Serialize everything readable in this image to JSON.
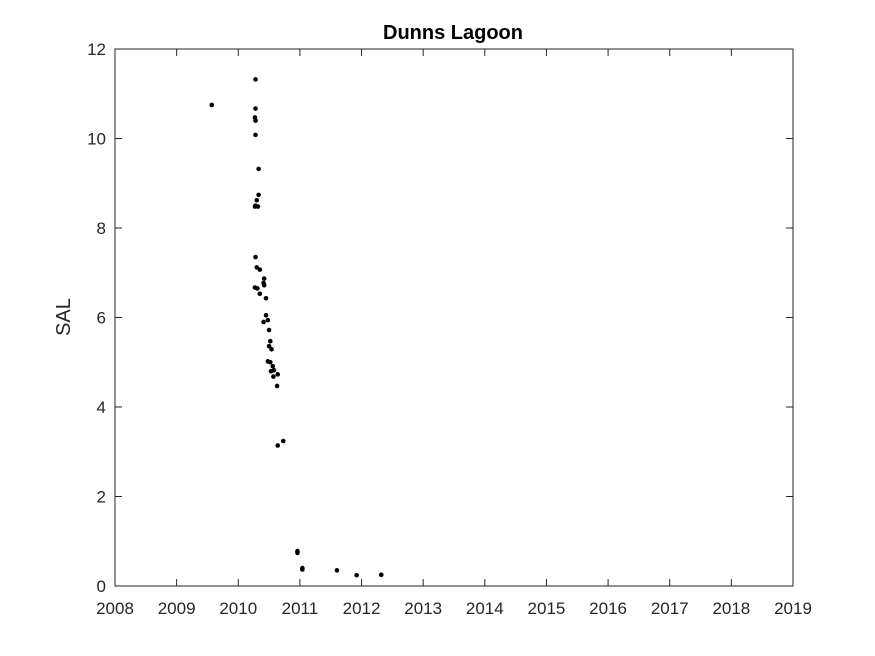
{
  "chart_data": {
    "type": "scatter",
    "title": "Dunns Lagoon",
    "xlabel": "",
    "ylabel": "SAL",
    "xlim": [
      2008,
      2019
    ],
    "ylim": [
      0,
      12
    ],
    "xticks": [
      "2008",
      "2009",
      "2010",
      "2011",
      "2012",
      "2013",
      "2014",
      "2015",
      "2016",
      "2017",
      "2018",
      "2019"
    ],
    "yticks": [
      "0",
      "2",
      "4",
      "6",
      "8",
      "10",
      "12"
    ],
    "grid": false,
    "marker_color": "#000000",
    "series": [
      {
        "x": [
          2009.57,
          2010.28,
          2010.28,
          2010.27,
          2010.28,
          2010.28,
          2010.33,
          2010.3,
          2010.33,
          2010.28,
          2010.27,
          2010.32,
          2010.28,
          2010.3,
          2010.35,
          2010.42,
          2010.41,
          2010.27,
          2010.31,
          2010.35,
          2010.42,
          2010.45,
          2010.41,
          2010.45,
          2010.48,
          2010.5,
          2010.52,
          2010.5,
          2010.54,
          2010.48,
          2010.52,
          2010.56,
          2010.53,
          2010.58,
          2010.57,
          2010.64,
          2010.63,
          2010.73,
          2010.64,
          2010.96,
          2010.96,
          2011.04,
          2011.04,
          2011.6,
          2011.92,
          2012.32
        ],
        "y": [
          10.75,
          11.32,
          10.67,
          10.47,
          10.4,
          10.08,
          9.32,
          8.62,
          8.74,
          8.5,
          8.48,
          8.48,
          7.35,
          7.12,
          7.07,
          6.87,
          6.77,
          6.67,
          6.65,
          6.53,
          6.72,
          6.43,
          5.9,
          6.05,
          5.94,
          5.72,
          5.47,
          5.36,
          5.29,
          5.02,
          5.0,
          4.91,
          4.8,
          4.82,
          4.68,
          4.73,
          4.47,
          3.24,
          3.14,
          0.78,
          0.74,
          0.4,
          0.37,
          0.35,
          0.24,
          0.25
        ]
      }
    ]
  }
}
